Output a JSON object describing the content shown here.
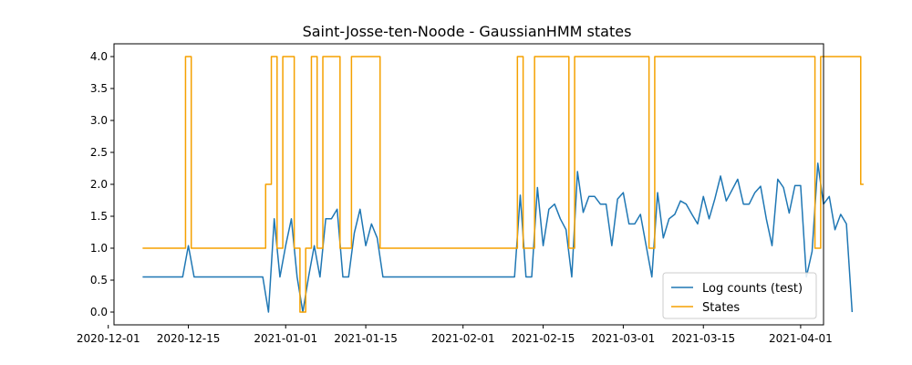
{
  "chart_data": {
    "type": "line",
    "title": "Saint-Josse-ten-Noode - GaussianHMM states",
    "xlabel": "",
    "ylabel": "",
    "x_axis_type": "date",
    "xlim": [
      "2020-12-02",
      "2021-04-05"
    ],
    "ylim": [
      -0.2,
      4.2
    ],
    "x_ticks": [
      "2020-12-01",
      "2020-12-15",
      "2021-01-01",
      "2021-01-15",
      "2021-02-01",
      "2021-02-15",
      "2021-03-01",
      "2021-03-15",
      "2021-04-01"
    ],
    "y_ticks": [
      "0.0",
      "0.5",
      "1.0",
      "1.5",
      "2.0",
      "2.5",
      "3.0",
      "3.5",
      "4.0"
    ],
    "grid": false,
    "legend_position": "lower-right",
    "x_start": "2020-12-07",
    "series": [
      {
        "name": "Log counts (test)",
        "color": "#1f77b4",
        "step": false,
        "values": [
          0.55,
          0.55,
          0.55,
          0.55,
          0.55,
          0.55,
          0.55,
          0.55,
          1.04,
          0.55,
          0.55,
          0.55,
          0.55,
          0.55,
          0.55,
          0.55,
          0.55,
          0.55,
          0.55,
          0.55,
          0.55,
          0.55,
          0.0,
          1.46,
          0.55,
          1.04,
          1.46,
          0.55,
          0.0,
          0.55,
          1.04,
          0.55,
          1.46,
          1.46,
          1.61,
          0.55,
          0.55,
          1.24,
          1.61,
          1.04,
          1.38,
          1.16,
          0.55,
          0.55,
          0.55,
          0.55,
          0.55,
          0.55,
          0.55,
          0.55,
          0.55,
          0.55,
          0.55,
          0.55,
          0.55,
          0.55,
          0.55,
          0.55,
          0.55,
          0.55,
          0.55,
          0.55,
          0.55,
          0.55,
          0.55,
          0.55,
          1.83,
          0.55,
          0.55,
          1.95,
          1.04,
          1.61,
          1.69,
          1.46,
          1.29,
          0.55,
          2.2,
          1.56,
          1.81,
          1.81,
          1.69,
          1.69,
          1.04,
          1.77,
          1.87,
          1.38,
          1.38,
          1.53,
          1.04,
          0.55,
          1.87,
          1.16,
          1.46,
          1.53,
          1.74,
          1.69,
          1.53,
          1.38,
          1.81,
          1.46,
          1.77,
          2.13,
          1.74,
          1.91,
          2.08,
          1.69,
          1.69,
          1.87,
          1.97,
          1.46,
          1.04,
          2.08,
          1.95,
          1.55,
          1.98,
          1.98,
          0.55,
          0.95,
          2.33,
          1.69,
          1.81,
          1.29,
          1.53,
          1.38,
          0.0
        ]
      },
      {
        "name": "States",
        "color": "#f5a100",
        "step": true,
        "values": [
          1,
          1,
          1,
          1,
          1,
          1,
          1,
          1,
          4,
          1,
          1,
          1,
          1,
          1,
          1,
          1,
          1,
          1,
          1,
          1,
          1,
          1,
          2,
          4,
          1,
          4,
          4,
          1,
          0,
          1,
          4,
          1,
          4,
          4,
          4,
          1,
          1,
          4,
          4,
          4,
          4,
          4,
          1,
          1,
          1,
          1,
          1,
          1,
          1,
          1,
          1,
          1,
          1,
          1,
          1,
          1,
          1,
          1,
          1,
          1,
          1,
          1,
          1,
          1,
          1,
          1,
          4,
          1,
          1,
          4,
          4,
          4,
          4,
          4,
          4,
          1,
          4,
          4,
          4,
          4,
          4,
          4,
          4,
          4,
          4,
          4,
          4,
          4,
          4,
          1,
          4,
          4,
          4,
          4,
          4,
          4,
          4,
          4,
          4,
          4,
          4,
          4,
          4,
          4,
          4,
          4,
          4,
          4,
          4,
          4,
          4,
          4,
          4,
          4,
          4,
          4,
          4,
          4,
          1,
          4,
          4,
          4,
          4,
          4,
          4,
          4,
          2
        ]
      }
    ]
  }
}
